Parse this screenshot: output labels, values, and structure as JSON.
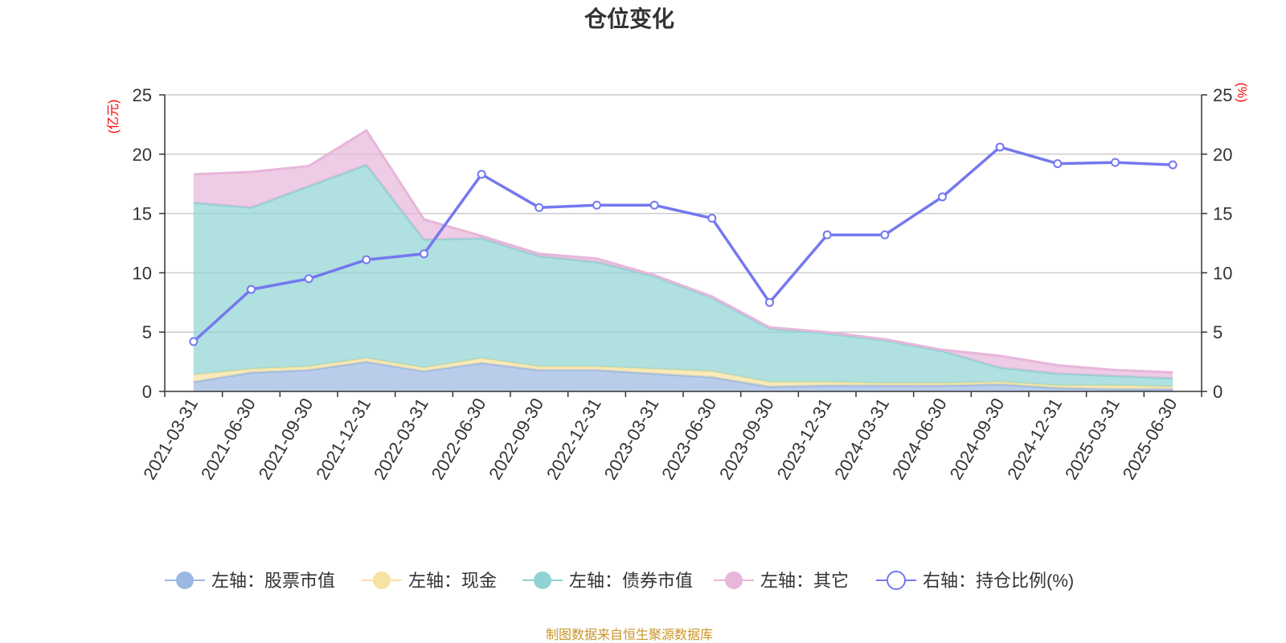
{
  "chart_data": {
    "type": "area",
    "title": "仓位变化",
    "left_unit": "(亿元)",
    "right_unit": "(%)",
    "x": [
      "2021-03-31",
      "2021-06-30",
      "2021-09-30",
      "2021-12-31",
      "2022-03-31",
      "2022-06-30",
      "2022-09-30",
      "2022-12-31",
      "2023-03-31",
      "2023-06-30",
      "2023-09-30",
      "2023-12-31",
      "2024-03-31",
      "2024-06-30",
      "2024-09-30",
      "2024-12-31",
      "2025-03-31",
      "2025-06-30"
    ],
    "ylim_left": [
      0,
      25
    ],
    "ylim_right": [
      0,
      25
    ],
    "yticks": [
      "0",
      "5",
      "10",
      "15",
      "20",
      "25"
    ],
    "stacked": true,
    "series": [
      {
        "name": "左轴：股票市值",
        "axis": "left",
        "color": "#9bb8e3",
        "values": [
          0.8,
          1.6,
          1.8,
          2.5,
          1.7,
          2.4,
          1.8,
          1.8,
          1.5,
          1.2,
          0.4,
          0.5,
          0.5,
          0.5,
          0.6,
          0.3,
          0.2,
          0.2
        ]
      },
      {
        "name": "左轴：现金",
        "axis": "left",
        "color": "#f6e3a1",
        "values": [
          0.6,
          0.3,
          0.3,
          0.3,
          0.3,
          0.4,
          0.3,
          0.3,
          0.4,
          0.5,
          0.4,
          0.3,
          0.2,
          0.2,
          0.2,
          0.2,
          0.3,
          0.2
        ]
      },
      {
        "name": "左轴：债券市值",
        "axis": "left",
        "color": "#8fd3d3",
        "values": [
          14.5,
          13.6,
          15.2,
          16.3,
          10.8,
          10.1,
          9.3,
          8.8,
          7.8,
          6.2,
          4.5,
          4.1,
          3.6,
          2.7,
          1.2,
          1.0,
          0.8,
          0.7
        ]
      },
      {
        "name": "左轴：其它",
        "axis": "left",
        "color": "#e7b6da",
        "values": [
          2.4,
          3.0,
          1.7,
          2.9,
          1.7,
          0.2,
          0.2,
          0.3,
          0.1,
          0.1,
          0.1,
          0.1,
          0.1,
          0.1,
          1.0,
          0.7,
          0.5,
          0.5
        ]
      },
      {
        "name": "右轴：持仓比例(%)",
        "axis": "right",
        "type": "line",
        "color": "#7478ef",
        "values": [
          4.2,
          8.6,
          9.5,
          11.1,
          11.6,
          18.3,
          15.5,
          15.7,
          15.7,
          14.6,
          7.5,
          13.2,
          13.2,
          16.4,
          20.6,
          19.2,
          19.3,
          19.1
        ]
      }
    ],
    "grid": true,
    "legend_position": "bottom"
  },
  "footer": {
    "source": "制图数据来自恒生聚源数据库"
  }
}
